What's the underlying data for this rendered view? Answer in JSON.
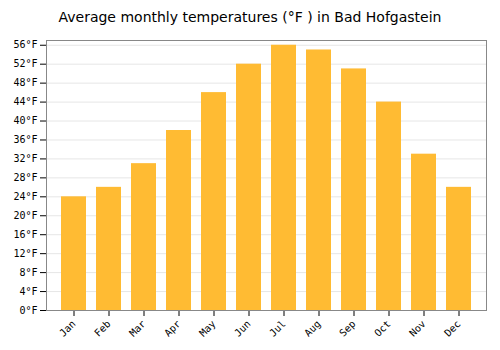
{
  "chart_data": {
    "type": "bar",
    "title": "Average monthly temperatures (°F ) in Bad Hofgastein",
    "categories": [
      "Jan",
      "Feb",
      "Mar",
      "Apr",
      "May",
      "Jun",
      "Jul",
      "Aug",
      "Sep",
      "Oct",
      "Nov",
      "Dec"
    ],
    "values": [
      24,
      26,
      31,
      38,
      46,
      52,
      56,
      55,
      51,
      44,
      33,
      26
    ],
    "color": "#FFBB33",
    "ylim": [
      0,
      57
    ],
    "yticks": [
      {
        "value": 0,
        "label": "0°F"
      },
      {
        "value": 4,
        "label": "4°F"
      },
      {
        "value": 8,
        "label": "8°F"
      },
      {
        "value": 12,
        "label": "12°F"
      },
      {
        "value": 16,
        "label": "16°F"
      },
      {
        "value": 20,
        "label": "20°F"
      },
      {
        "value": 24,
        "label": "24°F"
      },
      {
        "value": 28,
        "label": "28°F"
      },
      {
        "value": 32,
        "label": "32°F"
      },
      {
        "value": 36,
        "label": "36°F"
      },
      {
        "value": 40,
        "label": "40°F"
      },
      {
        "value": 44,
        "label": "44°F"
      },
      {
        "value": 48,
        "label": "48°F"
      },
      {
        "value": 52,
        "label": "52°F"
      },
      {
        "value": 56,
        "label": "56°F"
      }
    ],
    "grid": true
  }
}
